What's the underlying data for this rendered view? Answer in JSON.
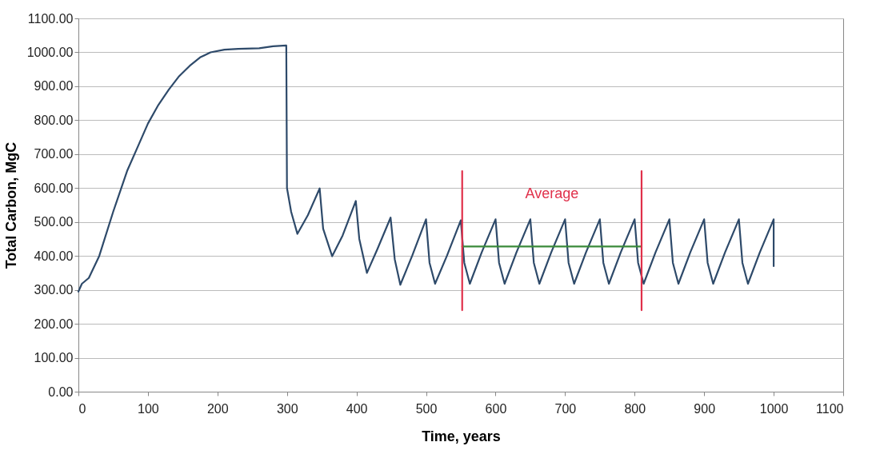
{
  "chart_data": {
    "type": "line",
    "xlabel": "Time, years",
    "ylabel": "Total Carbon, MgC",
    "xlim": [
      0,
      1100
    ],
    "ylim": [
      0,
      1100
    ],
    "xticks": [
      0,
      100,
      200,
      300,
      400,
      500,
      600,
      700,
      800,
      900,
      1000,
      1100
    ],
    "yticks": [
      {
        "value": 0,
        "label": "0.00"
      },
      {
        "value": 100,
        "label": "100.00"
      },
      {
        "value": 200,
        "label": "200.00"
      },
      {
        "value": 300,
        "label": "300.00"
      },
      {
        "value": 400,
        "label": "400.00"
      },
      {
        "value": 500,
        "label": "500.00"
      },
      {
        "value": 600,
        "label": "600.00"
      },
      {
        "value": 700,
        "label": "700.00"
      },
      {
        "value": 800,
        "label": "800.00"
      },
      {
        "value": 900,
        "label": "900.00"
      },
      {
        "value": 1000,
        "label": "1000.00"
      },
      {
        "value": 1100,
        "label": "1100.00"
      }
    ],
    "grid": "y",
    "legend": false,
    "series": [
      {
        "color": "#2e4a6a",
        "x": [
          0,
          5,
          15,
          30,
          50,
          70,
          85,
          100,
          115,
          130,
          145,
          160,
          175,
          190,
          210,
          230,
          260,
          280,
          299,
          300,
          306,
          315,
          330,
          347,
          352,
          365,
          380,
          399,
          404,
          415,
          430,
          449,
          455,
          463,
          480,
          500,
          505,
          513,
          530,
          550,
          555,
          563,
          580,
          600,
          605,
          613,
          630,
          650,
          655,
          663,
          680,
          700,
          705,
          713,
          730,
          750,
          755,
          763,
          780,
          800,
          805,
          813,
          830,
          850,
          855,
          863,
          880,
          900,
          905,
          913,
          930,
          950,
          955,
          963,
          980,
          1000,
          1000
        ],
        "values": [
          295,
          318,
          335,
          400,
          530,
          650,
          720,
          790,
          845,
          890,
          930,
          960,
          985,
          1000,
          1008,
          1010,
          1012,
          1018,
          1020,
          600,
          530,
          465,
          520,
          599,
          480,
          399,
          460,
          562,
          450,
          350,
          420,
          513,
          390,
          315,
          400,
          508,
          380,
          318,
          400,
          505,
          380,
          318,
          410,
          508,
          380,
          318,
          410,
          508,
          380,
          318,
          410,
          508,
          380,
          318,
          410,
          508,
          380,
          318,
          410,
          508,
          380,
          318,
          410,
          508,
          380,
          318,
          410,
          508,
          380,
          318,
          410,
          508,
          380,
          318,
          410,
          508,
          370
        ]
      },
      {
        "color": "#3a8a3a",
        "x": [
          552,
          810
        ],
        "values": [
          428,
          428
        ]
      },
      {
        "color": "#e0304a",
        "x": [
          552,
          552
        ],
        "values": [
          240,
          650
        ]
      },
      {
        "color": "#e0304a",
        "x": [
          810,
          810
        ],
        "values": [
          240,
          650
        ]
      }
    ],
    "annotations": [
      "Average"
    ]
  }
}
